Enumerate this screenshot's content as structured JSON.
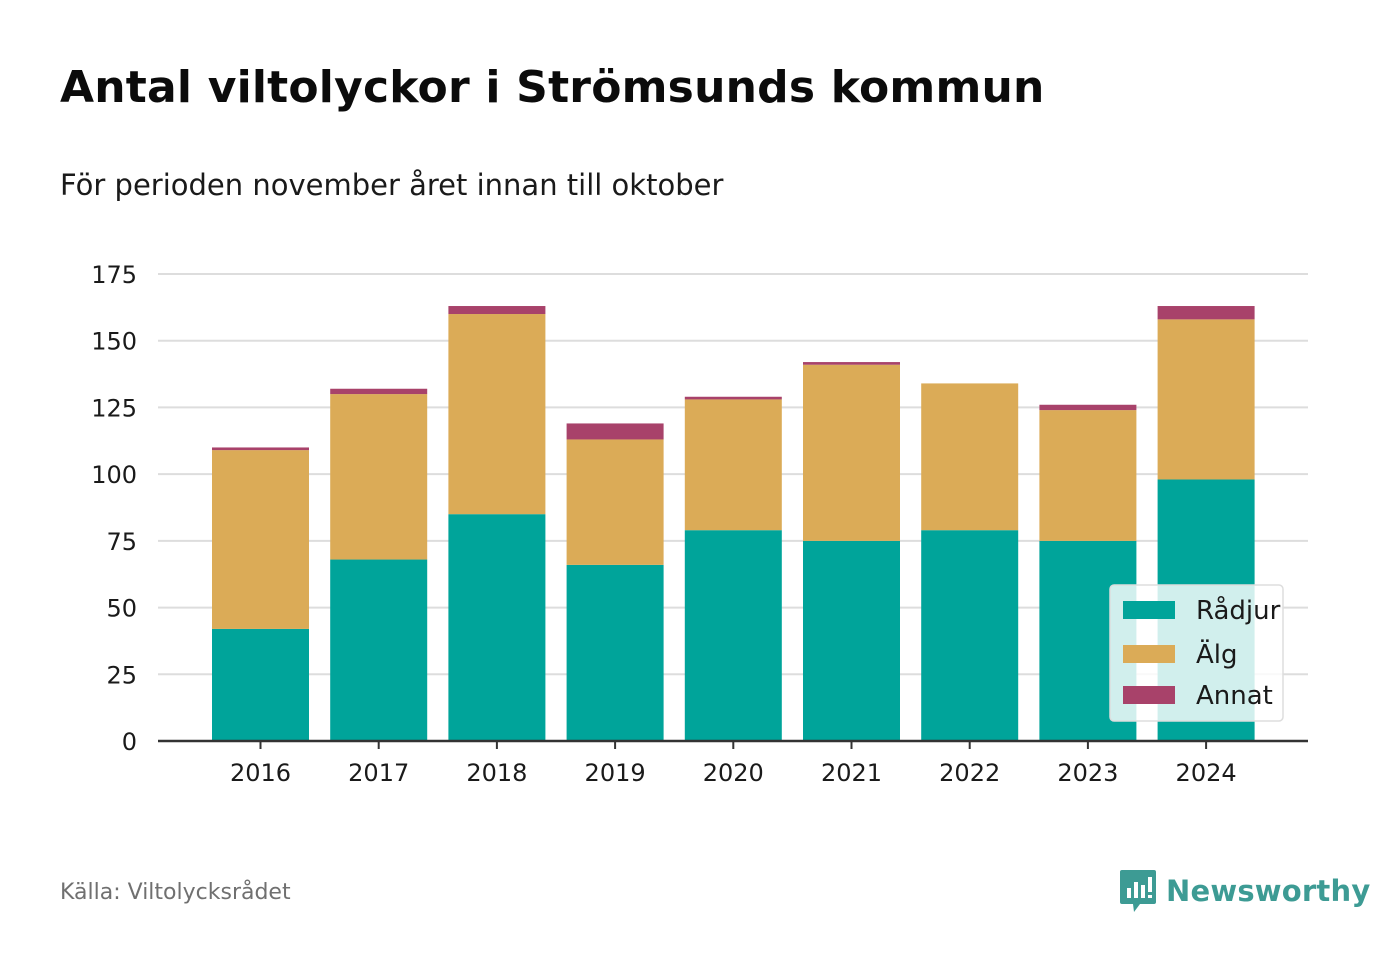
{
  "title": "Antal viltolyckor i Strömsunds kommun",
  "subtitle": "För perioden november året innan till oktober",
  "source": "Källa: Viltolycksrådet",
  "brand": {
    "name": "Newsworthy",
    "color": "#3d9b94",
    "icon": "newsworthy-logo-icon"
  },
  "chart_data": {
    "type": "bar",
    "stacked": true,
    "categories": [
      "2016",
      "2017",
      "2018",
      "2019",
      "2020",
      "2021",
      "2022",
      "2023",
      "2024"
    ],
    "series": [
      {
        "name": "Rådjur",
        "color": "#00a49a",
        "values": [
          42,
          68,
          85,
          66,
          79,
          75,
          79,
          75,
          98
        ]
      },
      {
        "name": "Älg",
        "color": "#dbab57",
        "values": [
          67,
          62,
          75,
          47,
          49,
          66,
          55,
          49,
          60
        ]
      },
      {
        "name": "Annat",
        "color": "#a8426a",
        "values": [
          1,
          2,
          3,
          6,
          1,
          1,
          0,
          2,
          5
        ]
      }
    ],
    "ylim": [
      0,
      175
    ],
    "yticks": [
      "0",
      "25",
      "50",
      "75",
      "100",
      "125",
      "150",
      "175"
    ],
    "grid": true,
    "legend": "bottom-right"
  }
}
